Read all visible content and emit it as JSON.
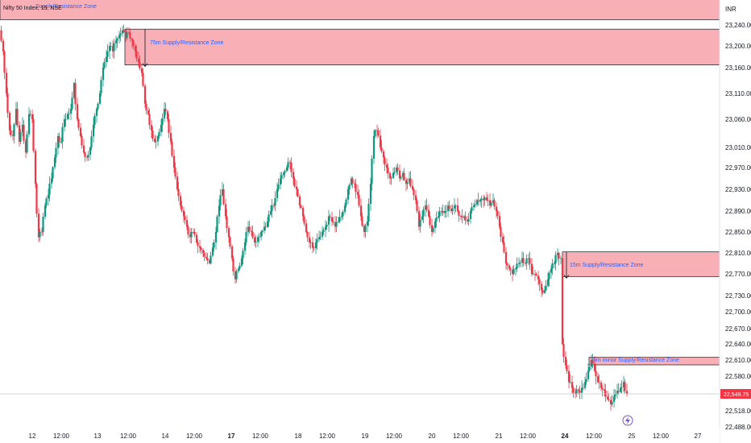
{
  "header": {
    "symbol_title": "Nifty 50 Index, 15, NSE",
    "currency": "INR"
  },
  "chart_data": {
    "type": "candlestick",
    "y_ticks": [
      "23,240.00",
      "23,200.00",
      "23,160.00",
      "23,110.00",
      "23,060.00",
      "23,010.00",
      "22,970.00",
      "22,930.00",
      "22,890.00",
      "22,850.00",
      "22,810.00",
      "22,770.00",
      "22,730.00",
      "22,700.00",
      "22,670.00",
      "22,640.00",
      "22,610.00",
      "22,580.00",
      "22,549.75",
      "22,518.00",
      "22,488.00"
    ],
    "x_ticks": [
      "12",
      "12:00",
      "13",
      "12:00",
      "14",
      "12:00",
      "17",
      "12:00",
      "18",
      "12:00",
      "19",
      "12:00",
      "20",
      "12:00",
      "21",
      "12:00",
      "24",
      "12:00",
      "25",
      "12:00",
      "27"
    ],
    "last_price": "22,549.75",
    "zones": [
      {
        "label": "Supply/Resistance Zone",
        "low": 23250,
        "high": 23300
      },
      {
        "label": "75m Supply/Resistance Zone",
        "low": 23165,
        "high": 23232
      },
      {
        "label": "15m Supply/Resistance Zone",
        "low": 22765,
        "high": 22812
      },
      {
        "label": "5m minor Supply/Resistance Zone",
        "low": 22601,
        "high": 22615
      }
    ],
    "close_path": [
      [
        0,
        23230
      ],
      [
        4,
        23190
      ],
      [
        8,
        23110
      ],
      [
        12,
        23040
      ],
      [
        16,
        23030
      ],
      [
        20,
        23080
      ],
      [
        24,
        23020
      ],
      [
        28,
        23050
      ],
      [
        32,
        23000
      ],
      [
        36,
        23070
      ],
      [
        40,
        23060
      ],
      [
        44,
        22940
      ],
      [
        48,
        22840
      ],
      [
        52,
        22850
      ],
      [
        56,
        22900
      ],
      [
        60,
        22920
      ],
      [
        64,
        22950
      ],
      [
        68,
        22990
      ],
      [
        72,
        23030
      ],
      [
        76,
        23020
      ],
      [
        80,
        23060
      ],
      [
        84,
        23070
      ],
      [
        88,
        23080
      ],
      [
        92,
        23130
      ],
      [
        96,
        23060
      ],
      [
        100,
        23030
      ],
      [
        104,
        23000
      ],
      [
        108,
        22990
      ],
      [
        112,
        23010
      ],
      [
        116,
        23050
      ],
      [
        120,
        23080
      ],
      [
        124,
        23110
      ],
      [
        128,
        23160
      ],
      [
        132,
        23180
      ],
      [
        136,
        23200
      ],
      [
        140,
        23190
      ],
      [
        144,
        23210
      ],
      [
        148,
        23220
      ],
      [
        152,
        23230
      ],
      [
        156,
        23215
      ],
      [
        160,
        23225
      ],
      [
        164,
        23210
      ],
      [
        168,
        23190
      ],
      [
        172,
        23170
      ],
      [
        176,
        23150
      ],
      [
        180,
        23090
      ],
      [
        184,
        23070
      ],
      [
        188,
        23040
      ],
      [
        192,
        23020
      ],
      [
        196,
        23030
      ],
      [
        200,
        23050
      ],
      [
        204,
        23080
      ],
      [
        208,
        23060
      ],
      [
        212,
        23020
      ],
      [
        216,
        22970
      ],
      [
        220,
        22930
      ],
      [
        224,
        22900
      ],
      [
        228,
        22880
      ],
      [
        232,
        22860
      ],
      [
        236,
        22840
      ],
      [
        240,
        22850
      ],
      [
        244,
        22830
      ],
      [
        248,
        22820
      ],
      [
        252,
        22810
      ],
      [
        256,
        22800
      ],
      [
        260,
        22790
      ],
      [
        264,
        22820
      ],
      [
        268,
        22850
      ],
      [
        272,
        22900
      ],
      [
        276,
        22930
      ],
      [
        280,
        22880
      ],
      [
        284,
        22840
      ],
      [
        288,
        22800
      ],
      [
        292,
        22760
      ],
      [
        296,
        22780
      ],
      [
        300,
        22800
      ],
      [
        304,
        22830
      ],
      [
        308,
        22860
      ],
      [
        312,
        22850
      ],
      [
        316,
        22830
      ],
      [
        320,
        22840
      ],
      [
        324,
        22850
      ],
      [
        328,
        22860
      ],
      [
        332,
        22870
      ],
      [
        336,
        22890
      ],
      [
        340,
        22900
      ],
      [
        344,
        22930
      ],
      [
        348,
        22950
      ],
      [
        352,
        22960
      ],
      [
        356,
        22970
      ],
      [
        360,
        22980
      ],
      [
        364,
        22950
      ],
      [
        368,
        22930
      ],
      [
        372,
        22900
      ],
      [
        376,
        22880
      ],
      [
        380,
        22850
      ],
      [
        384,
        22830
      ],
      [
        388,
        22820
      ],
      [
        392,
        22830
      ],
      [
        396,
        22840
      ],
      [
        400,
        22850
      ],
      [
        404,
        22860
      ],
      [
        408,
        22880
      ],
      [
        412,
        22870
      ],
      [
        416,
        22860
      ],
      [
        420,
        22870
      ],
      [
        424,
        22880
      ],
      [
        428,
        22900
      ],
      [
        432,
        22930
      ],
      [
        436,
        22950
      ],
      [
        440,
        22940
      ],
      [
        444,
        22920
      ],
      [
        448,
        22880
      ],
      [
        452,
        22850
      ],
      [
        456,
        22870
      ],
      [
        460,
        22940
      ],
      [
        464,
        23030
      ],
      [
        468,
        23040
      ],
      [
        472,
        23010
      ],
      [
        476,
        22990
      ],
      [
        480,
        22970
      ],
      [
        484,
        22950
      ],
      [
        488,
        22960
      ],
      [
        492,
        22970
      ],
      [
        496,
        22950
      ],
      [
        500,
        22960
      ],
      [
        504,
        22940
      ],
      [
        508,
        22950
      ],
      [
        512,
        22930
      ],
      [
        516,
        22910
      ],
      [
        520,
        22860
      ],
      [
        524,
        22880
      ],
      [
        528,
        22900
      ],
      [
        532,
        22880
      ],
      [
        536,
        22850
      ],
      [
        540,
        22870
      ],
      [
        544,
        22880
      ],
      [
        548,
        22890
      ],
      [
        552,
        22890
      ],
      [
        556,
        22900
      ],
      [
        560,
        22890
      ],
      [
        564,
        22900
      ],
      [
        568,
        22890
      ],
      [
        572,
        22880
      ],
      [
        576,
        22880
      ],
      [
        580,
        22870
      ],
      [
        584,
        22890
      ],
      [
        588,
        22900
      ],
      [
        592,
        22910
      ],
      [
        596,
        22910
      ],
      [
        600,
        22910
      ],
      [
        604,
        22910
      ],
      [
        608,
        22900
      ],
      [
        612,
        22910
      ],
      [
        616,
        22890
      ],
      [
        620,
        22860
      ],
      [
        624,
        22830
      ],
      [
        628,
        22790
      ],
      [
        632,
        22780
      ],
      [
        636,
        22770
      ],
      [
        640,
        22780
      ],
      [
        644,
        22790
      ],
      [
        648,
        22800
      ],
      [
        652,
        22790
      ],
      [
        656,
        22800
      ],
      [
        660,
        22770
      ],
      [
        664,
        22770
      ],
      [
        668,
        22760
      ],
      [
        672,
        22740
      ],
      [
        676,
        22740
      ],
      [
        680,
        22760
      ],
      [
        684,
        22780
      ],
      [
        688,
        22790
      ],
      [
        692,
        22810
      ],
      [
        696,
        22800
      ],
      [
        698,
        22640
      ],
      [
        702,
        22600
      ],
      [
        706,
        22570
      ],
      [
        710,
        22560
      ],
      [
        714,
        22550
      ],
      [
        718,
        22555
      ],
      [
        722,
        22560
      ],
      [
        726,
        22570
      ],
      [
        730,
        22590
      ],
      [
        734,
        22610
      ],
      [
        738,
        22590
      ],
      [
        742,
        22570
      ],
      [
        746,
        22560
      ],
      [
        750,
        22555
      ],
      [
        754,
        22540
      ],
      [
        758,
        22530
      ],
      [
        762,
        22545
      ],
      [
        766,
        22555
      ],
      [
        770,
        22560
      ],
      [
        774,
        22570
      ],
      [
        778,
        22550
      ]
    ]
  }
}
